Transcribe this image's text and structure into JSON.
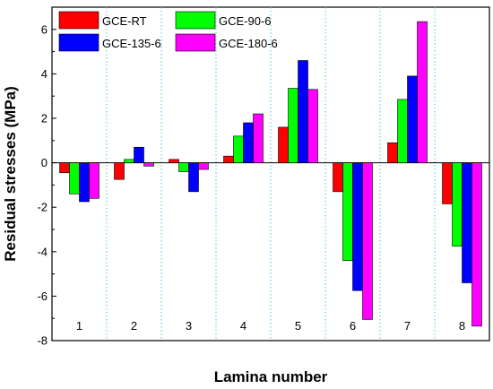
{
  "chart_data": {
    "type": "bar",
    "xlabel": "Lamina number",
    "ylabel": "Residual stresses (MPa)",
    "categories": [
      "1",
      "2",
      "3",
      "4",
      "5",
      "6",
      "7",
      "8"
    ],
    "ylim": [
      -8,
      7
    ],
    "yticks": [
      -8,
      -6,
      -4,
      -2,
      0,
      2,
      4,
      6
    ],
    "grid": "vertical dotted separators between laminae",
    "legend_position": "top-left",
    "series": [
      {
        "name": "GCE-RT",
        "color": "#ff0000",
        "values": [
          -0.45,
          -0.75,
          0.15,
          0.3,
          1.6,
          -1.3,
          0.9,
          -1.85
        ]
      },
      {
        "name": "GCE-90-6",
        "color": "#00ff00",
        "values": [
          -1.4,
          0.15,
          -0.4,
          1.2,
          3.35,
          -4.4,
          2.85,
          -3.75
        ]
      },
      {
        "name": "GCE-135-6",
        "color": "#0000ff",
        "values": [
          -1.75,
          0.7,
          -1.3,
          1.8,
          4.6,
          -5.75,
          3.9,
          -5.4
        ]
      },
      {
        "name": "GCE-180-6",
        "color": "#ff00ff",
        "values": [
          -1.6,
          -0.15,
          -0.3,
          2.2,
          3.3,
          -7.05,
          6.35,
          -7.35
        ]
      }
    ]
  }
}
